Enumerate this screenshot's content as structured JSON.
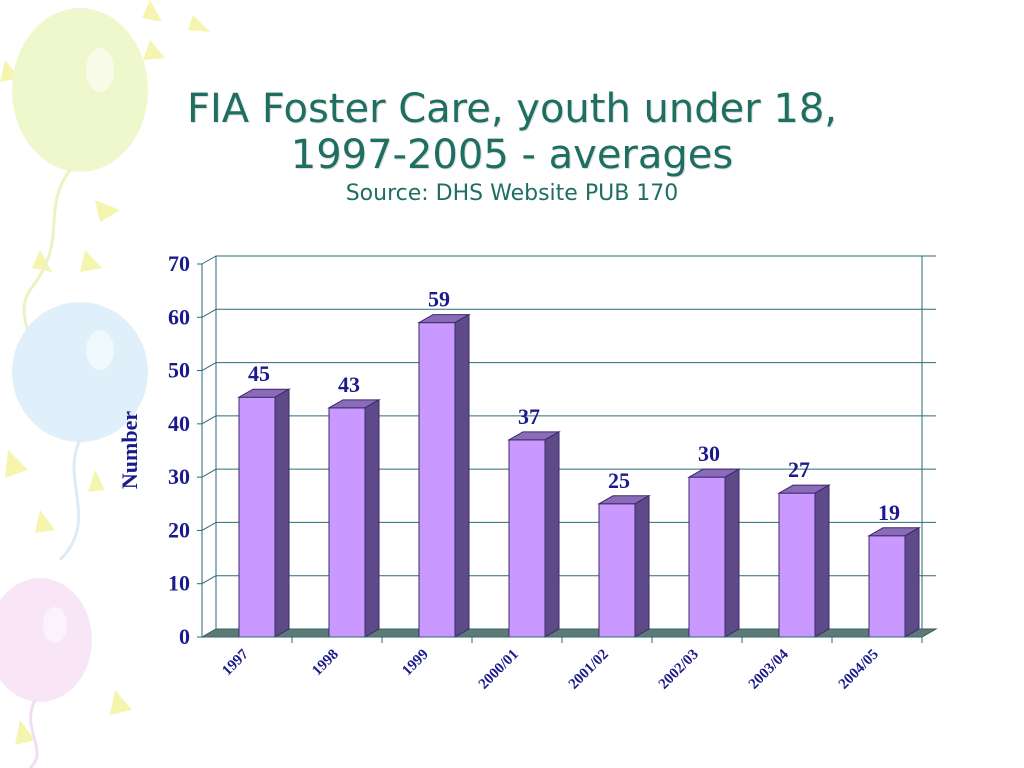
{
  "title_line1": "FIA Foster Care, youth under 18,",
  "title_line2": "1997-2005 - averages",
  "subtitle": "Source: DHS Website PUB 170",
  "colors": {
    "title": "#1e6f62",
    "bar_front": "#c999ff",
    "bar_top": "#8a6bb8",
    "bar_side": "#5e4a88",
    "label_text": "#1a1a8c",
    "floor": "#5f7a73",
    "frame": "#2a6a7a"
  },
  "chart_data": {
    "type": "bar",
    "categories": [
      "1997",
      "1998",
      "1999",
      "2000/01",
      "2001/02",
      "2002/03",
      "2003/04",
      "2004/05"
    ],
    "values": [
      45,
      43,
      59,
      37,
      25,
      30,
      27,
      19
    ],
    "data_labels": [
      "45",
      "43",
      "59",
      "37",
      "25",
      "30",
      "27",
      "19"
    ],
    "ylabel": "Number",
    "ylim": [
      0,
      70
    ],
    "yticks": [
      "0",
      "10",
      "20",
      "30",
      "40",
      "50",
      "60",
      "70"
    ],
    "grid": true,
    "legend": "none",
    "style": "3d"
  }
}
